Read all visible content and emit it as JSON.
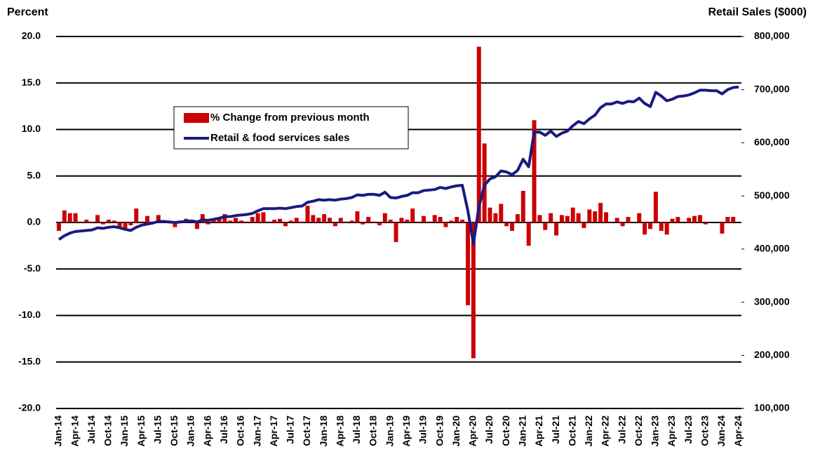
{
  "chart_data": {
    "type": "bar",
    "ylabel": "Percent",
    "y2label": "Retail Sales ($000)",
    "categories": [
      "Jan-14",
      null,
      null,
      "Apr-14",
      null,
      null,
      "Jul-14",
      null,
      null,
      "Oct-14",
      null,
      null,
      "Jan-15",
      null,
      null,
      "Apr-15",
      null,
      null,
      "Jul-15",
      null,
      null,
      "Oct-15",
      null,
      null,
      "Jan-16",
      null,
      null,
      "Apr-16",
      null,
      null,
      "Jul-16",
      null,
      null,
      "Oct-16",
      null,
      null,
      "Jan-17",
      null,
      null,
      "Apr-17",
      null,
      null,
      "Jul-17",
      null,
      null,
      "Oct-17",
      null,
      null,
      "Jan-18",
      null,
      null,
      "Apr-18",
      null,
      null,
      "Jul-18",
      null,
      null,
      "Oct-18",
      null,
      null,
      "Jan-19",
      null,
      null,
      "Apr-19",
      null,
      null,
      "Jul-19",
      null,
      null,
      "Oct-19",
      null,
      null,
      "Jan-20",
      null,
      null,
      "Apr-20",
      null,
      null,
      "Jul-20",
      null,
      null,
      "Oct-20",
      null,
      null,
      "Jan-21",
      null,
      null,
      "Apr-21",
      null,
      null,
      "Jul-21",
      null,
      null,
      "Oct-21",
      null,
      null,
      "Jan-22",
      null,
      null,
      "Apr-22",
      null,
      null,
      "Jul-22",
      null,
      null,
      "Oct-22",
      null,
      null,
      "Jan-23",
      null,
      null,
      "Apr-23",
      null,
      null,
      "Jul-23",
      null,
      null,
      "Oct-23",
      null,
      null,
      "Jan-24",
      null,
      null,
      "Apr-24"
    ],
    "series": [
      {
        "name": "% Change from previous month",
        "type": "bar",
        "color": "#cc0000",
        "values": [
          -0.9,
          1.3,
          1.0,
          1.0,
          0.1,
          0.3,
          0.1,
          0.8,
          -0.2,
          0.3,
          0.2,
          -0.5,
          -0.8,
          -0.3,
          1.5,
          0.1,
          0.7,
          0.1,
          0.8,
          0.1,
          -0.1,
          -0.5,
          0.2,
          0.4,
          0.3,
          -0.7,
          0.9,
          -0.2,
          0.4,
          0.4,
          0.9,
          0.2,
          0.5,
          0.2,
          0.1,
          0.6,
          1.0,
          1.1,
          0.1,
          0.3,
          0.4,
          -0.4,
          0.2,
          0.5,
          0.1,
          1.8,
          0.8,
          0.5,
          0.9,
          0.5,
          -0.4,
          0.5,
          0.1,
          0.2,
          1.2,
          -0.2,
          0.6,
          0.1,
          -0.3,
          1.0,
          0.3,
          -2.1,
          0.5,
          0.3,
          1.5,
          0.1,
          0.7,
          0.1,
          0.8,
          0.6,
          -0.5,
          0.2,
          0.6,
          0.3,
          -8.9,
          -14.6,
          18.9,
          8.5,
          1.6,
          1.0,
          2.0,
          -0.4,
          -0.9,
          0.9,
          3.4,
          -2.5,
          11.0,
          0.8,
          -0.8,
          1.0,
          -1.4,
          0.8,
          0.7,
          1.6,
          1.0,
          -0.6,
          1.4,
          1.2,
          2.1,
          1.1,
          0.0,
          0.5,
          -0.4,
          0.6,
          0.0,
          1.0,
          -1.3,
          -0.7,
          3.3,
          -0.9,
          -1.3,
          0.4,
          0.6,
          0.0,
          0.5,
          0.7,
          0.8,
          -0.2,
          0.0,
          0.0,
          -1.2,
          0.6,
          0.6,
          0.0
        ]
      },
      {
        "name": "Retail & food services sales",
        "type": "line",
        "axis": "y2",
        "color": "#1a1a80",
        "values": [
          418000,
          425000,
          430000,
          433000,
          434000,
          435000,
          436000,
          440000,
          439000,
          441000,
          442000,
          440000,
          437000,
          435000,
          441000,
          445000,
          447000,
          449000,
          452000,
          452000,
          451000,
          450000,
          451000,
          452000,
          453000,
          451000,
          455000,
          454000,
          456000,
          458000,
          461000,
          461000,
          463000,
          464000,
          465000,
          467000,
          472000,
          476000,
          476000,
          476000,
          477000,
          476000,
          478000,
          480000,
          481000,
          488000,
          490000,
          493000,
          492000,
          493000,
          492000,
          494000,
          495000,
          497000,
          502000,
          501000,
          503000,
          503000,
          501000,
          507000,
          497000,
          496000,
          499000,
          501000,
          506000,
          506000,
          510000,
          511000,
          512000,
          516000,
          514000,
          517000,
          519000,
          520000,
          472000,
          410000,
          480000,
          520000,
          532000,
          536000,
          547000,
          545000,
          540000,
          548000,
          569000,
          555000,
          620000,
          620000,
          614000,
          622000,
          612000,
          618000,
          622000,
          632000,
          640000,
          636000,
          645000,
          652000,
          666000,
          673000,
          673000,
          677000,
          674000,
          678000,
          677000,
          684000,
          674000,
          668000,
          695000,
          688000,
          679000,
          682000,
          687000,
          688000,
          690000,
          694000,
          699000,
          699000,
          698000,
          698000,
          692000,
          700000,
          704000,
          705000
        ]
      }
    ],
    "ylim": [
      -20,
      20
    ],
    "yticks": [
      {
        "value": -20,
        "label": "-20.0"
      },
      {
        "value": -15,
        "label": "-15.0"
      },
      {
        "value": -10,
        "label": "-10.0"
      },
      {
        "value": -5,
        "label": "-5.0"
      },
      {
        "value": 0,
        "label": "0.0"
      },
      {
        "value": 5,
        "label": "5.0"
      },
      {
        "value": 10,
        "label": "10.0"
      },
      {
        "value": 15,
        "label": "15.0"
      },
      {
        "value": 20,
        "label": "20.0"
      }
    ],
    "y2lim": [
      100000,
      800000
    ],
    "y2ticks": [
      {
        "value": 100000,
        "label": "100,000"
      },
      {
        "value": 200000,
        "label": "200,000"
      },
      {
        "value": 300000,
        "label": "300,000"
      },
      {
        "value": 400000,
        "label": "400,000"
      },
      {
        "value": 500000,
        "label": "500,000"
      },
      {
        "value": 600000,
        "label": "600,000"
      },
      {
        "value": 700000,
        "label": "700,000"
      },
      {
        "value": 800000,
        "label": "800,000"
      }
    ],
    "grid": true,
    "legend": "upper left"
  }
}
